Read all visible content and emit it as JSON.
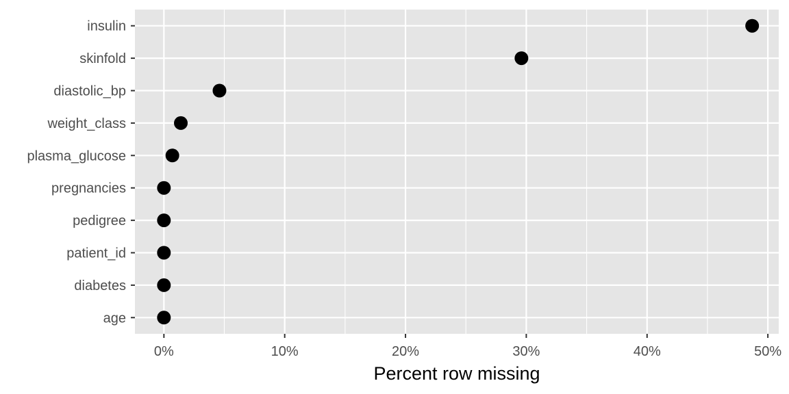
{
  "chart_data": {
    "type": "scatter",
    "title": "",
    "xlabel": "Percent row missing",
    "ylabel": "",
    "xlim": [
      -2.4,
      50.9
    ],
    "x_ticks": [
      0,
      10,
      20,
      30,
      40,
      50
    ],
    "x_tick_labels": [
      "0%",
      "10%",
      "20%",
      "30%",
      "40%",
      "50%"
    ],
    "categories": [
      "insulin",
      "skinfold",
      "diastolic_bp",
      "weight_class",
      "plasma_glucose",
      "pregnancies",
      "pedigree",
      "patient_id",
      "diabetes",
      "age"
    ],
    "values": [
      48.7,
      29.6,
      4.6,
      1.4,
      0.7,
      0,
      0,
      0,
      0,
      0
    ],
    "grid": true,
    "legend": "none",
    "colors": {
      "panel": "#e5e5e5",
      "gridline": "#ffffff",
      "point": "#000000",
      "tick_text": "#4d4d4d",
      "axis_title": "#000000"
    }
  }
}
